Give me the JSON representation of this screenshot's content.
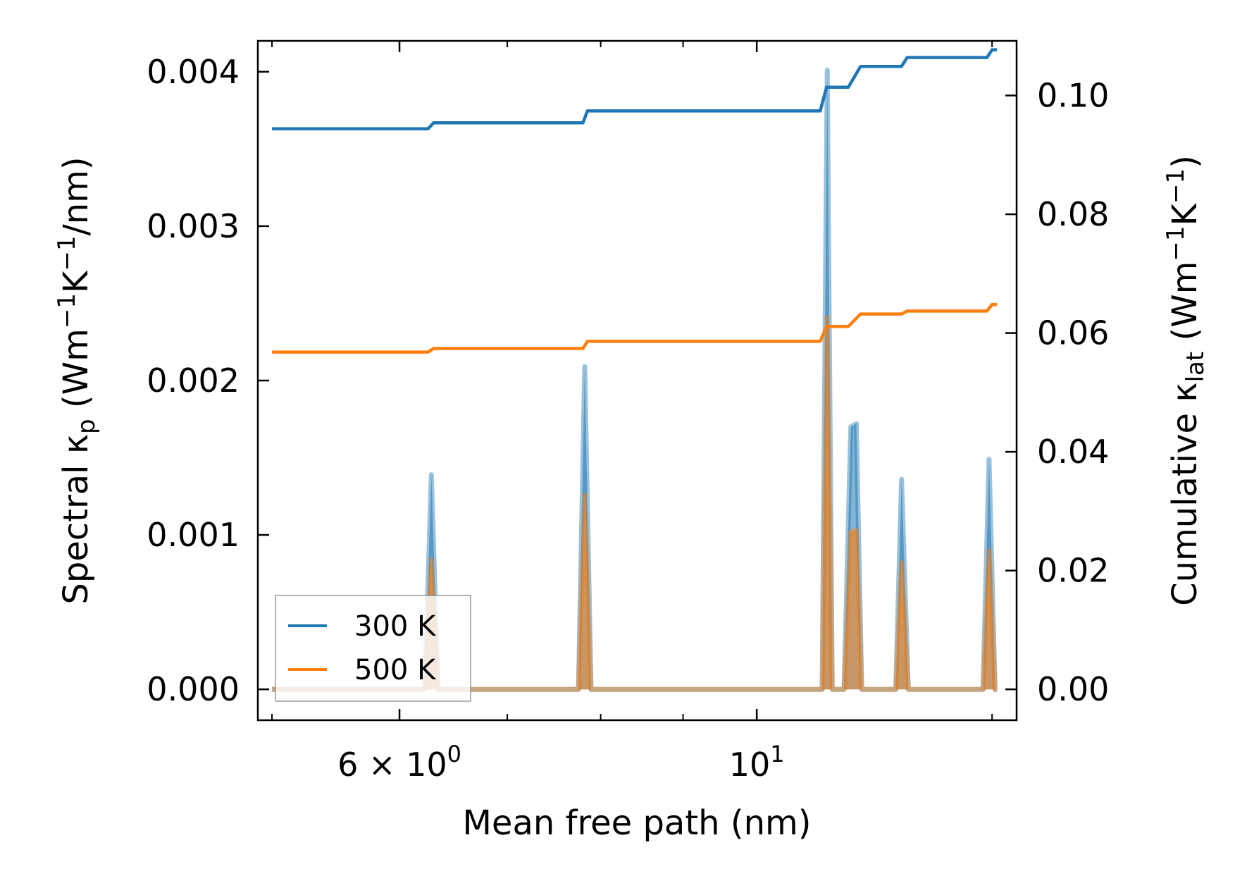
{
  "chart_data": {
    "type": "line",
    "title": "",
    "xlabel": "Mean free path (nm)",
    "xscale": "log",
    "xlim": [
      4.9,
      14.5
    ],
    "x_ticks": [
      {
        "value": 6,
        "mantissa": "6",
        "times": "×",
        "base": "10",
        "exp": "0"
      },
      {
        "value": 10,
        "mantissa": "",
        "times": "",
        "base": "10",
        "exp": "1"
      }
    ],
    "x_minor_ticks": [
      5,
      7,
      8,
      9,
      14
    ],
    "y_left": {
      "label_main": "Spectral κ",
      "label_sub": "p",
      "label_unit_a": " (Wm",
      "label_sup1": "−1",
      "label_unit_b": "K",
      "label_sup2": "−1",
      "label_unit_c": "/nm)",
      "ylim": [
        -0.0002,
        0.0042
      ],
      "ticks": [
        0.0,
        0.001,
        0.002,
        0.003,
        0.004
      ],
      "tick_labels": [
        "0.000",
        "0.001",
        "0.002",
        "0.003",
        "0.004"
      ]
    },
    "y_right": {
      "label_main": "Cumulative κ",
      "label_sub": "lat",
      "label_unit_a": " (Wm",
      "label_sup1": "−1",
      "label_unit_b": "K",
      "label_sup2": "−1",
      "label_unit_c": ")",
      "ylim": [
        -0.0052,
        0.1092
      ],
      "ticks": [
        0.0,
        0.02,
        0.04,
        0.06,
        0.08,
        0.1
      ],
      "tick_labels": [
        "0.00",
        "0.02",
        "0.04",
        "0.06",
        "0.08",
        "0.10"
      ]
    },
    "legend": {
      "position": "lower-left",
      "entries": [
        {
          "name": "300 K",
          "color": "#1f77b4"
        },
        {
          "name": "500 K",
          "color": "#ff7f0e"
        }
      ]
    },
    "series": [
      {
        "name": "300 K",
        "color": "#1f77b4",
        "axis": "right",
        "kind": "cumulative",
        "x": [
          5.0,
          6.25,
          6.3,
          7.8,
          7.85,
          10.95,
          11.05,
          11.4,
          11.6,
          12.3,
          12.4,
          13.9,
          14.0,
          14.1
        ],
        "y": [
          0.0944,
          0.0944,
          0.0954,
          0.0954,
          0.0974,
          0.0974,
          0.1014,
          0.1014,
          0.1049,
          0.1049,
          0.1064,
          0.1064,
          0.1077,
          0.1077
        ]
      },
      {
        "name": "500 K",
        "color": "#ff7f0e",
        "axis": "right",
        "kind": "cumulative",
        "x": [
          5.0,
          6.25,
          6.3,
          7.8,
          7.85,
          10.95,
          11.05,
          11.4,
          11.6,
          12.3,
          12.4,
          13.9,
          14.0,
          14.1
        ],
        "y": [
          0.0568,
          0.0568,
          0.0574,
          0.0574,
          0.0586,
          0.0586,
          0.0611,
          0.0611,
          0.0632,
          0.0632,
          0.0637,
          0.0637,
          0.0648,
          0.0648
        ]
      },
      {
        "name": "300 K spectral",
        "color": "#1f77b4",
        "axis": "left",
        "kind": "spectral",
        "x": [
          5.0,
          6.22,
          6.28,
          6.34,
          7.75,
          7.82,
          7.89,
          10.98,
          11.06,
          11.14,
          11.33,
          11.44,
          11.53,
          11.62,
          12.2,
          12.3,
          12.42,
          13.82,
          13.94,
          14.06,
          14.1
        ],
        "y": [
          0.0,
          0.0,
          0.00139,
          0.0,
          0.0,
          0.00209,
          0.0,
          0.0,
          0.00401,
          0.0,
          0.0,
          0.0017,
          0.00172,
          0.0,
          0.0,
          0.00136,
          0.0,
          0.0,
          0.00149,
          0.0,
          0.0
        ]
      },
      {
        "name": "500 K spectral",
        "color": "#ff7f0e",
        "axis": "left",
        "kind": "spectral",
        "x": [
          5.0,
          6.22,
          6.28,
          6.34,
          7.75,
          7.82,
          7.89,
          10.98,
          11.06,
          11.14,
          11.33,
          11.44,
          11.53,
          11.62,
          12.2,
          12.3,
          12.42,
          13.82,
          13.94,
          14.06,
          14.1
        ],
        "y": [
          0.0,
          0.0,
          0.00084,
          0.0,
          0.0,
          0.00126,
          0.0,
          0.0,
          0.00241,
          0.0,
          0.0,
          0.00102,
          0.00103,
          0.0,
          0.0,
          0.00082,
          0.0,
          0.0,
          0.0009,
          0.0,
          0.0
        ]
      }
    ]
  }
}
